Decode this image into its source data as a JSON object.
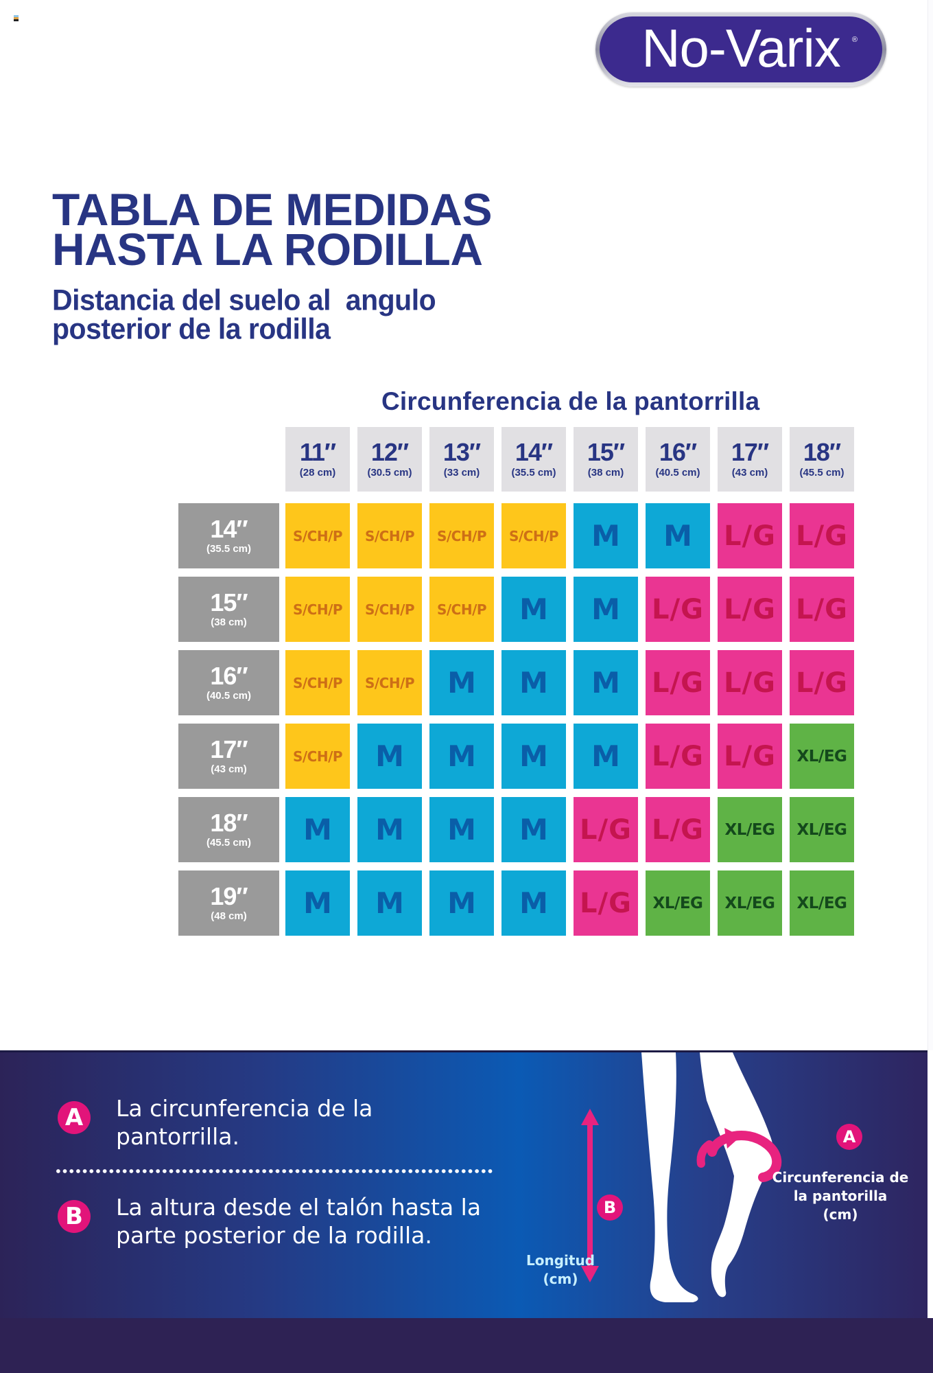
{
  "brand": {
    "logo_text": "No-Varix",
    "registered_mark": "®",
    "color": "#3c2a8e"
  },
  "heading": {
    "title_line1": "TABLA DE MEDIDAS",
    "title_line2": "HASTA LA RODILLA",
    "subtitle_line1": "Distancia del suelo al  angulo",
    "subtitle_line2": "posterior de la rodilla"
  },
  "table": {
    "column_caption": "Circunferencia de la pantorrilla",
    "columns": [
      {
        "in": "11″",
        "cm": "(28 cm)"
      },
      {
        "in": "12″",
        "cm": "(30.5 cm)"
      },
      {
        "in": "13″",
        "cm": "(33 cm)"
      },
      {
        "in": "14″",
        "cm": "(35.5 cm)"
      },
      {
        "in": "15″",
        "cm": "(38 cm)"
      },
      {
        "in": "16″",
        "cm": "(40.5 cm)"
      },
      {
        "in": "17″",
        "cm": "(43 cm)"
      },
      {
        "in": "18″",
        "cm": "(45.5 cm)"
      }
    ],
    "rows": [
      {
        "in": "14″",
        "cm": "(35.5 cm)",
        "cells": [
          "S/CH/P",
          "S/CH/P",
          "S/CH/P",
          "S/CH/P",
          "M",
          "M",
          "L/G",
          "L/G"
        ]
      },
      {
        "in": "15″",
        "cm": "(38 cm)",
        "cells": [
          "S/CH/P",
          "S/CH/P",
          "S/CH/P",
          "M",
          "M",
          "L/G",
          "L/G",
          "L/G"
        ]
      },
      {
        "in": "16″",
        "cm": "(40.5 cm)",
        "cells": [
          "S/CH/P",
          "S/CH/P",
          "M",
          "M",
          "M",
          "L/G",
          "L/G",
          "L/G"
        ]
      },
      {
        "in": "17″",
        "cm": "(43 cm)",
        "cells": [
          "S/CH/P",
          "M",
          "M",
          "M",
          "M",
          "L/G",
          "L/G",
          "XL/EG"
        ]
      },
      {
        "in": "18″",
        "cm": "(45.5 cm)",
        "cells": [
          "M",
          "M",
          "M",
          "M",
          "L/G",
          "L/G",
          "XL/EG",
          "XL/EG"
        ]
      },
      {
        "in": "19″",
        "cm": "(48 cm)",
        "cells": [
          "M",
          "M",
          "M",
          "M",
          "L/G",
          "XL/EG",
          "XL/EG",
          "XL/EG"
        ]
      }
    ],
    "size_colors": {
      "S/CH/P": {
        "bg": "#fec61b",
        "fg": "#cd6f16"
      },
      "M": {
        "bg": "#0ea8d6",
        "fg": "#0a5ea8"
      },
      "L/G": {
        "bg": "#ea3592",
        "fg": "#c4154f"
      },
      "XL/EG": {
        "bg": "#5fb346",
        "fg": "#14491c"
      }
    }
  },
  "legend": {
    "a": {
      "badge": "A",
      "line1": "La circunferencia de la",
      "line2": "pantorrilla."
    },
    "b": {
      "badge": "B",
      "line1": "La altura desde el talón hasta la",
      "line2": "parte posterior de la rodilla."
    }
  },
  "illustration": {
    "badge_a": "A",
    "badge_b": "B",
    "label_a_line1": "Circunferencia de",
    "label_a_line2": "la pantorilla",
    "label_a_line3": "(cm)",
    "label_b_line1": "Longitud",
    "label_b_line2": "(cm)"
  }
}
